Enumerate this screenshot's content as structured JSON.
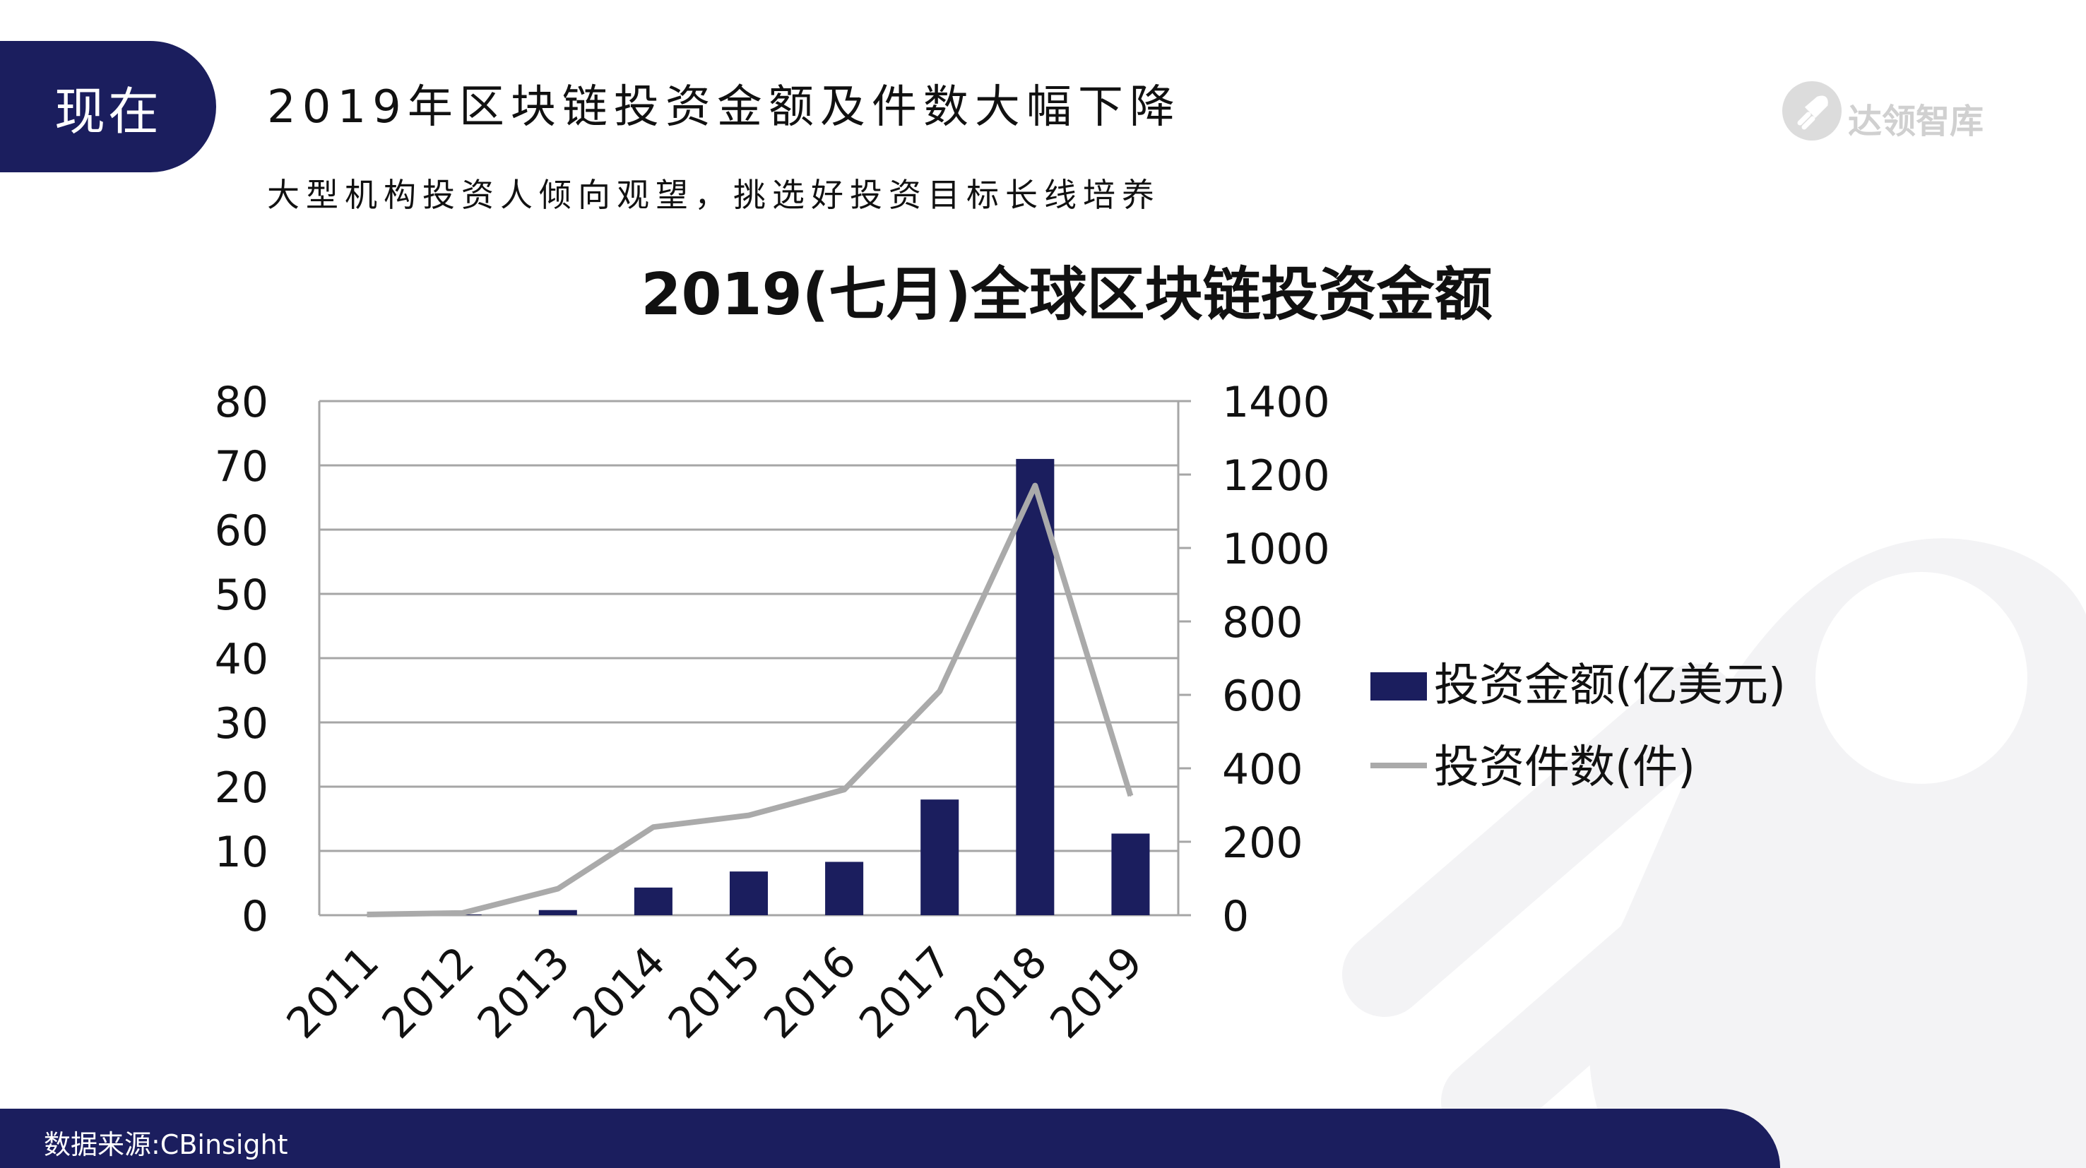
{
  "header": {
    "tab_label": "现在",
    "title": "2019年区块链投资金额及件数大幅下降",
    "subtitle": "大型机构投资人倾向观望，挑选好投资目标长线培养"
  },
  "logo": {
    "text": "达领智库",
    "icon": "rocket-icon"
  },
  "footer": {
    "source": "数据来源:CBinsight"
  },
  "colors": {
    "navy": "#1b1e5e",
    "line": "#aaaaaa",
    "grid": "#a6a6a6"
  },
  "chart_data": {
    "type": "bar",
    "title": "2019(七月)全球区块链投资金额",
    "categories": [
      "2011",
      "2012",
      "2013",
      "2014",
      "2015",
      "2016",
      "2017",
      "2018",
      "2019"
    ],
    "series": [
      {
        "name": "投资金额(亿美元)",
        "type": "bar",
        "axis": "left",
        "color": "#1b1e5e",
        "values": [
          0,
          0.1,
          0.8,
          4.3,
          6.8,
          8.3,
          18,
          71,
          12.7
        ]
      },
      {
        "name": "投资件数(件)",
        "type": "line",
        "axis": "right",
        "color": "#aaaaaa",
        "values": [
          2,
          6,
          72,
          240,
          272,
          342,
          610,
          1170,
          325
        ]
      }
    ],
    "y_left": {
      "min": 0,
      "max": 80,
      "ticks": [
        "0",
        "10",
        "20",
        "30",
        "40",
        "50",
        "60",
        "70",
        "80"
      ]
    },
    "y_right": {
      "min": 0,
      "max": 1400,
      "ticks": [
        "0",
        "200",
        "400",
        "600",
        "800",
        "1000",
        "1200",
        "1400"
      ]
    },
    "grid": true,
    "legend_position": "right"
  }
}
